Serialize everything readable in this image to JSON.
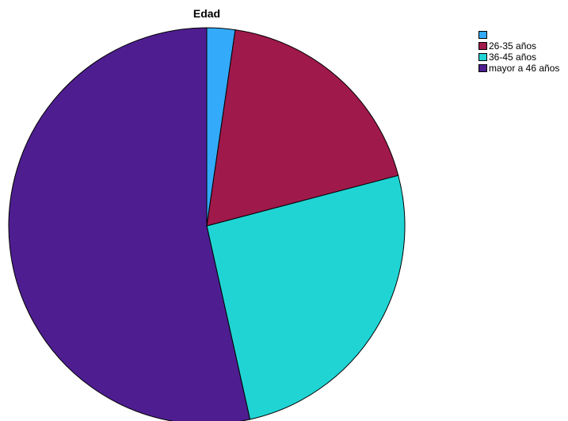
{
  "chart_data": {
    "type": "pie",
    "title": "Edad",
    "legend_position": "top-right",
    "slices": [
      {
        "label": "",
        "value": 2.3,
        "color": "#33aafa"
      },
      {
        "label": "26-35 años",
        "value": 18.6,
        "color": "#a0194b"
      },
      {
        "label": "36-45 años",
        "value": 25.6,
        "color": "#20d4d4"
      },
      {
        "label": "mayor a 46 años",
        "value": 53.5,
        "color": "#4e1e91"
      }
    ]
  }
}
